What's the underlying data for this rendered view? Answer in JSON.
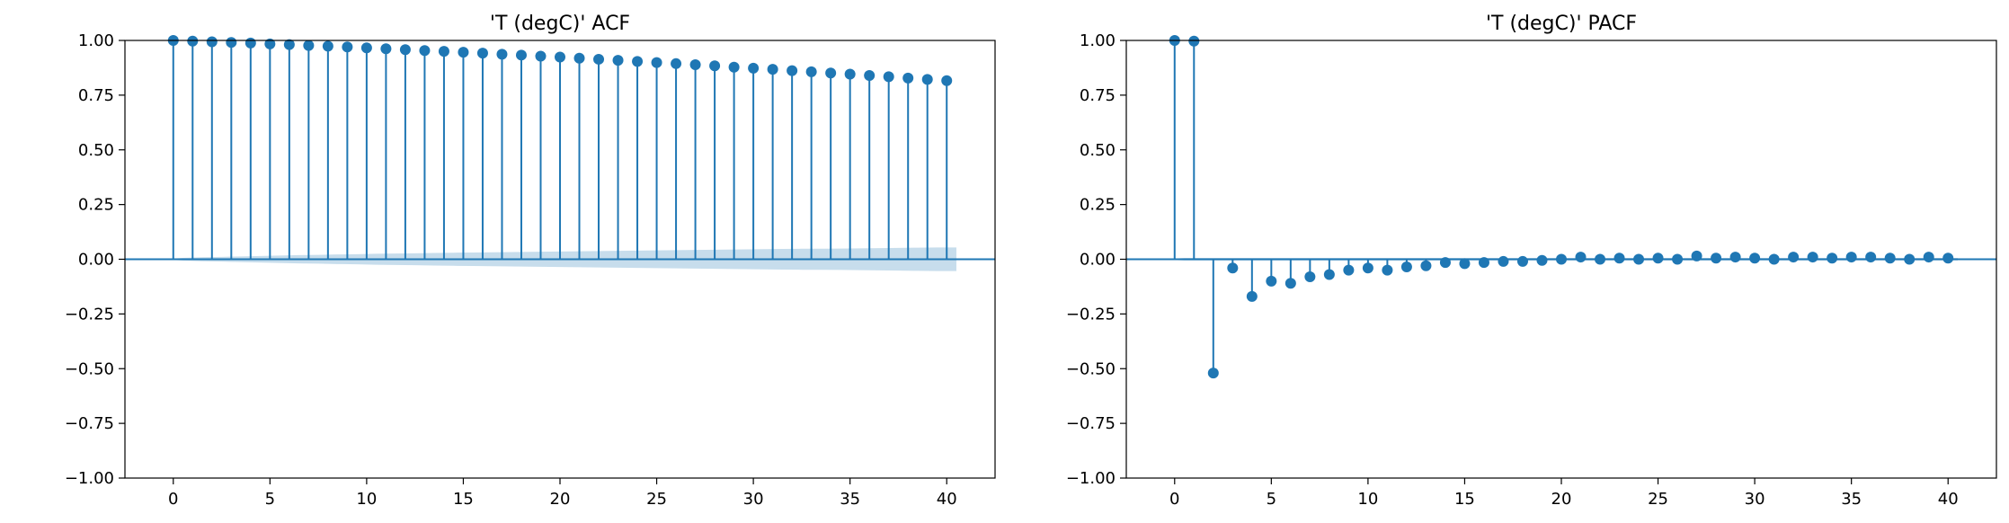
{
  "chart_data": [
    {
      "type": "stem",
      "title": "'T (degC)' ACF",
      "xlabel": "",
      "ylabel": "",
      "x": [
        0,
        1,
        2,
        3,
        4,
        5,
        6,
        7,
        8,
        9,
        10,
        11,
        12,
        13,
        14,
        15,
        16,
        17,
        18,
        19,
        20,
        21,
        22,
        23,
        24,
        25,
        26,
        27,
        28,
        29,
        30,
        31,
        32,
        33,
        34,
        35,
        36,
        37,
        38,
        39,
        40
      ],
      "values": [
        1.0,
        0.997,
        0.994,
        0.991,
        0.988,
        0.984,
        0.981,
        0.977,
        0.974,
        0.97,
        0.966,
        0.962,
        0.958,
        0.954,
        0.95,
        0.946,
        0.942,
        0.937,
        0.933,
        0.928,
        0.924,
        0.919,
        0.914,
        0.909,
        0.904,
        0.899,
        0.894,
        0.889,
        0.884,
        0.878,
        0.873,
        0.868,
        0.862,
        0.857,
        0.851,
        0.846,
        0.84,
        0.834,
        0.828,
        0.822,
        0.816
      ],
      "confidence_upper": [
        0.0,
        0.006,
        0.009,
        0.011,
        0.013,
        0.015,
        0.017,
        0.019,
        0.02,
        0.022,
        0.023,
        0.025,
        0.026,
        0.027,
        0.029,
        0.03,
        0.031,
        0.032,
        0.033,
        0.034,
        0.035,
        0.036,
        0.037,
        0.038,
        0.039,
        0.04,
        0.041,
        0.042,
        0.043,
        0.044,
        0.045,
        0.046,
        0.047,
        0.048,
        0.048,
        0.049,
        0.05,
        0.051,
        0.052,
        0.053,
        0.054
      ],
      "xlim": [
        -2.5,
        42.5
      ],
      "ylim": [
        -1.0,
        1.0
      ],
      "xticks": [
        0,
        5,
        10,
        15,
        20,
        25,
        30,
        35,
        40
      ],
      "yticks": [
        -1.0,
        -0.75,
        -0.5,
        -0.25,
        0.0,
        0.25,
        0.5,
        0.75,
        1.0
      ],
      "xtick_labels": [
        "0",
        "5",
        "10",
        "15",
        "20",
        "25",
        "30",
        "35",
        "40"
      ],
      "ytick_labels": [
        "−1.00",
        "−0.75",
        "−0.50",
        "−0.25",
        "0.00",
        "0.25",
        "0.50",
        "0.75",
        "1.00"
      ],
      "grid": false,
      "color": "#1f77b4",
      "band_color": "#1f77b4"
    },
    {
      "type": "stem",
      "title": "'T (degC)' PACF",
      "xlabel": "",
      "ylabel": "",
      "x": [
        0,
        1,
        2,
        3,
        4,
        5,
        6,
        7,
        8,
        9,
        10,
        11,
        12,
        13,
        14,
        15,
        16,
        17,
        18,
        19,
        20,
        21,
        22,
        23,
        24,
        25,
        26,
        27,
        28,
        29,
        30,
        31,
        32,
        33,
        34,
        35,
        36,
        37,
        38,
        39,
        40
      ],
      "values": [
        1.0,
        0.997,
        -0.52,
        -0.04,
        -0.17,
        -0.1,
        -0.11,
        -0.08,
        -0.07,
        -0.05,
        -0.04,
        -0.05,
        -0.035,
        -0.03,
        -0.015,
        -0.02,
        -0.015,
        -0.01,
        -0.01,
        -0.005,
        0.0,
        0.01,
        0.0,
        0.005,
        0.0,
        0.005,
        0.0,
        0.015,
        0.005,
        0.01,
        0.005,
        0.0,
        0.01,
        0.01,
        0.005,
        0.01,
        0.01,
        0.005,
        0.0,
        0.01,
        0.005
      ],
      "confidence_upper": [
        0.0,
        0.006,
        0.006,
        0.006,
        0.006,
        0.006,
        0.006,
        0.006,
        0.006,
        0.006,
        0.006,
        0.006,
        0.006,
        0.006,
        0.006,
        0.006,
        0.006,
        0.006,
        0.006,
        0.006,
        0.006,
        0.006,
        0.006,
        0.006,
        0.006,
        0.006,
        0.006,
        0.006,
        0.006,
        0.006,
        0.006,
        0.006,
        0.006,
        0.006,
        0.006,
        0.006,
        0.006,
        0.006,
        0.006,
        0.006,
        0.006
      ],
      "xlim": [
        -2.5,
        42.5
      ],
      "ylim": [
        -1.0,
        1.0
      ],
      "xticks": [
        0,
        5,
        10,
        15,
        20,
        25,
        30,
        35,
        40
      ],
      "yticks": [
        -1.0,
        -0.75,
        -0.5,
        -0.25,
        0.0,
        0.25,
        0.5,
        0.75,
        1.0
      ],
      "xtick_labels": [
        "0",
        "5",
        "10",
        "15",
        "20",
        "25",
        "30",
        "35",
        "40"
      ],
      "ytick_labels": [
        "−1.00",
        "−0.75",
        "−0.50",
        "−0.25",
        "0.00",
        "0.25",
        "0.50",
        "0.75",
        "1.00"
      ],
      "grid": false,
      "color": "#1f77b4",
      "band_color": "#1f77b4"
    }
  ]
}
